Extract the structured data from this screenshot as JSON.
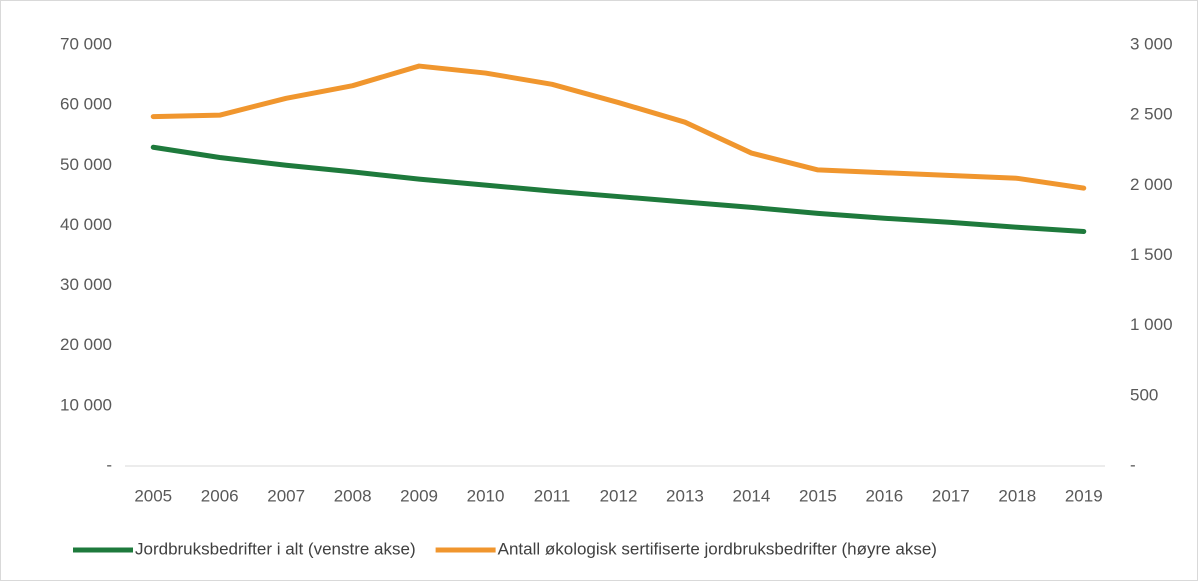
{
  "chart_data": {
    "type": "line",
    "categories": [
      "2005",
      "2006",
      "2007",
      "2008",
      "2009",
      "2010",
      "2011",
      "2012",
      "2013",
      "2014",
      "2015",
      "2016",
      "2017",
      "2018",
      "2019"
    ],
    "series": [
      {
        "name": "Jordbruksbedrifter i alt (venstre akse)",
        "color": "#1e7a3c",
        "values": [
          53000,
          51300,
          50000,
          48900,
          47700,
          46700,
          45700,
          44800,
          43900,
          43000,
          42000,
          41200,
          40500,
          39700,
          39000
        ]
      },
      {
        "name": "Antall økologisk sertifiserte jordbruksbedrifter (høyre akse)",
        "color": "#f0962e",
        "axis": "y2",
        "values": [
          2490,
          2500,
          2620,
          2710,
          2850,
          2800,
          2720,
          2590,
          2450,
          2230,
          2110,
          2090,
          2070,
          2050,
          1980
        ]
      }
    ],
    "ylim": [
      0,
      70000
    ],
    "yticks": [
      {
        "value": 0,
        "label": "-"
      },
      {
        "value": 10000,
        "label": "10 000"
      },
      {
        "value": 20000,
        "label": "20 000"
      },
      {
        "value": 30000,
        "label": "30 000"
      },
      {
        "value": 40000,
        "label": "40 000"
      },
      {
        "value": 50000,
        "label": "50 000"
      },
      {
        "value": 60000,
        "label": "60 000"
      },
      {
        "value": 70000,
        "label": "70 000"
      }
    ],
    "y2lim": [
      0,
      3000
    ],
    "y2ticks": [
      {
        "value": 0,
        "label": "-"
      },
      500,
      {
        "value": 1000,
        "label": "1 000"
      },
      {
        "value": 1500,
        "label": "1 500"
      },
      {
        "value": 2000,
        "label": "2 000"
      },
      {
        "value": 2500,
        "label": "2 500"
      },
      {
        "value": 3000,
        "label": "3 000"
      }
    ],
    "grid": false,
    "legend": "bottom"
  }
}
